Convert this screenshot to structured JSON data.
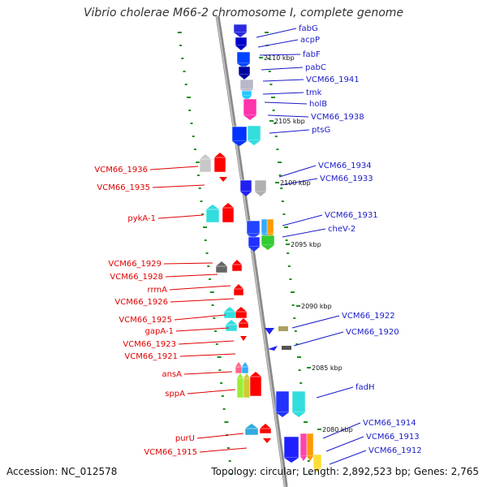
{
  "title": "Vibrio cholerae M66-2 chromosome I, complete genome",
  "footer": {
    "accession": "Accession: NC_012578",
    "summary": "Topology: circular; Length: 2,892,523 bp; Genes: 2,765"
  },
  "colors": {
    "forward_label": "#1a1ac8",
    "reverse_label": "#e00000",
    "backbone": "#8a8a8a",
    "tick": "#1f8f1f"
  },
  "scale_labels": [
    "2110 kbp",
    "2105 kbp",
    "2100 kbp",
    "2095 kbp",
    "2090 kbp",
    "2085 kbp",
    "2080 kbp"
  ],
  "right_genes": [
    "fabG",
    "acpP",
    "fabF",
    "pabC",
    "VCM66_1941",
    "tmk",
    "holB",
    "VCM66_1938",
    "ptsG",
    "VCM66_1934",
    "VCM66_1933",
    "VCM66_1931",
    "cheV-2",
    "VCM66_1922",
    "VCM66_1920",
    "fadH",
    "VCM66_1914",
    "VCM66_1913",
    "VCM66_1912"
  ],
  "left_genes": [
    "VCM66_1936",
    "VCM66_1935",
    "pykA-1",
    "VCM66_1929",
    "VCM66_1928",
    "rrmA",
    "VCM66_1926",
    "VCM66_1925",
    "gapA-1",
    "VCM66_1923",
    "VCM66_1921",
    "ansA",
    "sppA",
    "purU",
    "VCM66_1915"
  ]
}
